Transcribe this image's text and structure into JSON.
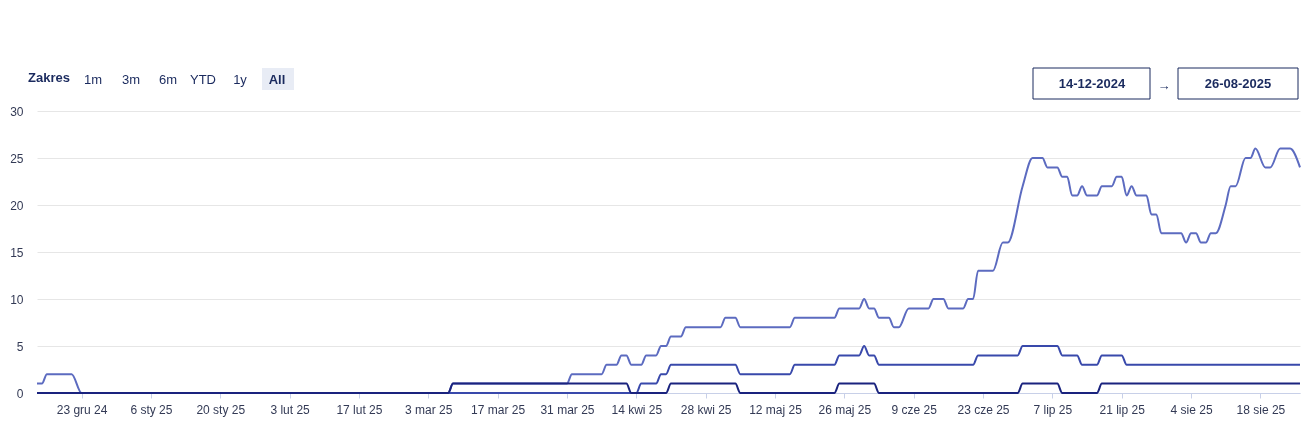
{
  "chart_data": {
    "type": "line",
    "annotations": [
      "Zakres",
      "1m",
      "3m",
      "6m",
      "YTD",
      "1y",
      "All",
      "14-12-2024",
      "→",
      "26-08-2025"
    ],
    "xlim": [
      "2024-12-14",
      "2025-08-26"
    ],
    "xticks": [
      {
        "value": "2024-12-23",
        "label": "23 gru 24"
      },
      {
        "value": "2025-01-06",
        "label": "6 sty 25"
      },
      {
        "value": "2025-01-20",
        "label": "20 sty 25"
      },
      {
        "value": "2025-02-03",
        "label": "3 lut 25"
      },
      {
        "value": "2025-02-17",
        "label": "17 lut 25"
      },
      {
        "value": "2025-03-03",
        "label": "3 mar 25"
      },
      {
        "value": "2025-03-17",
        "label": "17 mar 25"
      },
      {
        "value": "2025-03-31",
        "label": "31 mar 25"
      },
      {
        "value": "2025-04-14",
        "label": "14 kwi 25"
      },
      {
        "value": "2025-04-28",
        "label": "28 kwi 25"
      },
      {
        "value": "2025-05-12",
        "label": "12 maj 25"
      },
      {
        "value": "2025-05-26",
        "label": "26 maj 25"
      },
      {
        "value": "2025-06-09",
        "label": "9 cze 25"
      },
      {
        "value": "2025-06-23",
        "label": "23 cze 25"
      },
      {
        "value": "2025-07-07",
        "label": "7 lip 25"
      },
      {
        "value": "2025-07-21",
        "label": "21 lip 25"
      },
      {
        "value": "2025-08-04",
        "label": "4 sie 25"
      },
      {
        "value": "2025-08-18",
        "label": "18 sie 25"
      }
    ],
    "ylim": [
      0,
      30
    ],
    "yticks": [
      0,
      5,
      10,
      15,
      20,
      25,
      30
    ],
    "grid": "y",
    "marker": "none",
    "line_style": "solid",
    "series": [
      {
        "color": "#5c6bc0",
        "x": [
          "2024-12-14",
          "2024-12-15",
          "2024-12-16",
          "2024-12-21",
          "2024-12-23",
          "2025-03-07",
          "2025-03-08",
          "2025-03-31",
          "2025-04-01",
          "2025-04-07",
          "2025-04-08",
          "2025-04-10",
          "2025-04-11",
          "2025-04-12",
          "2025-04-13",
          "2025-04-15",
          "2025-04-16",
          "2025-04-18",
          "2025-04-19",
          "2025-04-20",
          "2025-04-21",
          "2025-04-23",
          "2025-04-24",
          "2025-05-01",
          "2025-05-02",
          "2025-05-04",
          "2025-05-05",
          "2025-05-15",
          "2025-05-16",
          "2025-05-24",
          "2025-05-25",
          "2025-05-29",
          "2025-05-30",
          "2025-05-31",
          "2025-06-01",
          "2025-06-02",
          "2025-06-04",
          "2025-06-05",
          "2025-06-06",
          "2025-06-08",
          "2025-06-12",
          "2025-06-13",
          "2025-06-15",
          "2025-06-16",
          "2025-06-19",
          "2025-06-20",
          "2025-06-21",
          "2025-06-22",
          "2025-06-25",
          "2025-06-27",
          "2025-06-28",
          "2025-07-01",
          "2025-07-03",
          "2025-07-05",
          "2025-07-06",
          "2025-07-08",
          "2025-07-09",
          "2025-07-10",
          "2025-07-11",
          "2025-07-12",
          "2025-07-13",
          "2025-07-14",
          "2025-07-16",
          "2025-07-17",
          "2025-07-19",
          "2025-07-20",
          "2025-07-21",
          "2025-07-22",
          "2025-07-23",
          "2025-07-24",
          "2025-07-26",
          "2025-07-27",
          "2025-07-28",
          "2025-07-29",
          "2025-08-02",
          "2025-08-03",
          "2025-08-04",
          "2025-08-05",
          "2025-08-06",
          "2025-08-07",
          "2025-08-08",
          "2025-08-09",
          "2025-08-11",
          "2025-08-12",
          "2025-08-13",
          "2025-08-15",
          "2025-08-16",
          "2025-08-17",
          "2025-08-19",
          "2025-08-20",
          "2025-08-22",
          "2025-08-24",
          "2025-08-26"
        ],
        "values": [
          1,
          1,
          2,
          2,
          0,
          0,
          1,
          1,
          2,
          2,
          3,
          3,
          4,
          4,
          3,
          3,
          4,
          4,
          5,
          5,
          6,
          6,
          7,
          7,
          8,
          8,
          7,
          7,
          8,
          8,
          9,
          9,
          10,
          9,
          9,
          8,
          8,
          7,
          7,
          9,
          9,
          10,
          10,
          9,
          9,
          10,
          10,
          13,
          13,
          16,
          16,
          22,
          25,
          25,
          24,
          24,
          23,
          23,
          21,
          21,
          22,
          21,
          21,
          22,
          22,
          23,
          23,
          21,
          22,
          21,
          21,
          19,
          19,
          17,
          17,
          16,
          17,
          17,
          16,
          16,
          17,
          17,
          20,
          22,
          22,
          25,
          25,
          26,
          24,
          24,
          26,
          26,
          24
        ]
      },
      {
        "color": "#3949ab",
        "x": [
          "2024-12-14",
          "2025-04-14",
          "2025-04-15",
          "2025-04-18",
          "2025-04-19",
          "2025-04-20",
          "2025-04-21",
          "2025-05-04",
          "2025-05-05",
          "2025-05-15",
          "2025-05-16",
          "2025-05-24",
          "2025-05-25",
          "2025-05-29",
          "2025-05-30",
          "2025-05-31",
          "2025-06-01",
          "2025-06-02",
          "2025-06-21",
          "2025-06-22",
          "2025-06-30",
          "2025-07-01",
          "2025-07-08",
          "2025-07-09",
          "2025-07-12",
          "2025-07-13",
          "2025-07-16",
          "2025-07-17",
          "2025-07-21",
          "2025-07-22",
          "2025-08-26"
        ],
        "values": [
          0,
          0,
          1,
          1,
          2,
          2,
          3,
          3,
          2,
          2,
          3,
          3,
          4,
          4,
          5,
          4,
          4,
          3,
          3,
          4,
          4,
          5,
          5,
          4,
          4,
          3,
          3,
          4,
          4,
          3,
          3
        ]
      },
      {
        "color": "#1a237e",
        "x": [
          "2024-12-14",
          "2025-03-07",
          "2025-03-08",
          "2025-04-12",
          "2025-04-13",
          "2025-04-20",
          "2025-04-21",
          "2025-05-04",
          "2025-05-05",
          "2025-05-24",
          "2025-05-25",
          "2025-06-01",
          "2025-06-02",
          "2025-06-30",
          "2025-07-01",
          "2025-07-08",
          "2025-07-09",
          "2025-07-16",
          "2025-07-17",
          "2025-08-26"
        ],
        "values": [
          0,
          0,
          1,
          1,
          0,
          0,
          1,
          1,
          0,
          0,
          1,
          1,
          0,
          0,
          1,
          1,
          0,
          0,
          1,
          1
        ]
      }
    ]
  }
}
